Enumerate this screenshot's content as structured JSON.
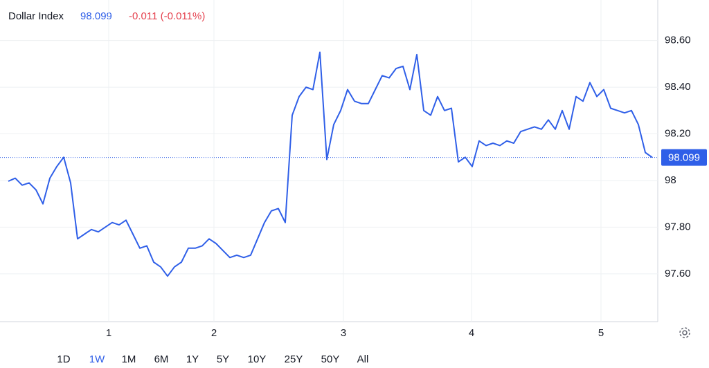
{
  "chart_data": {
    "type": "line",
    "title": "Dollar Index",
    "last_value": "98.099",
    "change": "-0.011 (-0.011%)",
    "series": [
      {
        "name": "Dollar Index",
        "color": "#2f5fe8",
        "values": [
          97.997,
          98.01,
          97.98,
          97.99,
          97.96,
          97.9,
          98.01,
          98.06,
          98.1,
          97.99,
          97.75,
          97.77,
          97.79,
          97.78,
          97.8,
          97.82,
          97.81,
          97.83,
          97.77,
          97.71,
          97.72,
          97.65,
          97.63,
          97.59,
          97.63,
          97.65,
          97.71,
          97.71,
          97.72,
          97.75,
          97.73,
          97.7,
          97.67,
          97.68,
          97.67,
          97.68,
          97.75,
          97.82,
          97.87,
          97.88,
          97.82,
          98.28,
          98.36,
          98.4,
          98.39,
          98.55,
          98.09,
          98.24,
          98.3,
          98.39,
          98.34,
          98.33,
          98.33,
          98.39,
          98.45,
          98.44,
          98.48,
          98.49,
          98.39,
          98.54,
          98.3,
          98.28,
          98.36,
          98.3,
          98.31,
          98.08,
          98.1,
          98.06,
          98.17,
          98.15,
          98.16,
          98.15,
          98.17,
          98.16,
          98.21,
          98.22,
          98.23,
          98.22,
          98.26,
          98.22,
          98.3,
          98.22,
          98.36,
          98.34,
          98.42,
          98.36,
          98.39,
          98.31,
          98.3,
          98.29,
          98.3,
          98.24,
          98.12,
          98.099
        ]
      }
    ],
    "current_line": 98.099,
    "xlim": [
      -1.2,
      93.8
    ],
    "xticks": [
      {
        "value": 14.5,
        "label": "1"
      },
      {
        "value": 29.7,
        "label": "2"
      },
      {
        "value": 48.4,
        "label": "3"
      },
      {
        "value": 66.9,
        "label": "4"
      },
      {
        "value": 85.6,
        "label": "5"
      }
    ],
    "ylim": [
      97.395,
      98.774
    ],
    "yticks": [
      {
        "value": 97.6,
        "label": "97.60"
      },
      {
        "value": 97.8,
        "label": "97.80"
      },
      98,
      {
        "value": 98.2,
        "label": "98.20"
      },
      {
        "value": 98.4,
        "label": "98.40"
      },
      {
        "value": 98.6,
        "label": "98.60"
      }
    ],
    "grid": true,
    "ranges": [
      "1D",
      "1W",
      "1M",
      "6M",
      "1Y",
      "5Y",
      "10Y",
      "25Y",
      "50Y",
      "All"
    ],
    "selected_range": "1W"
  }
}
